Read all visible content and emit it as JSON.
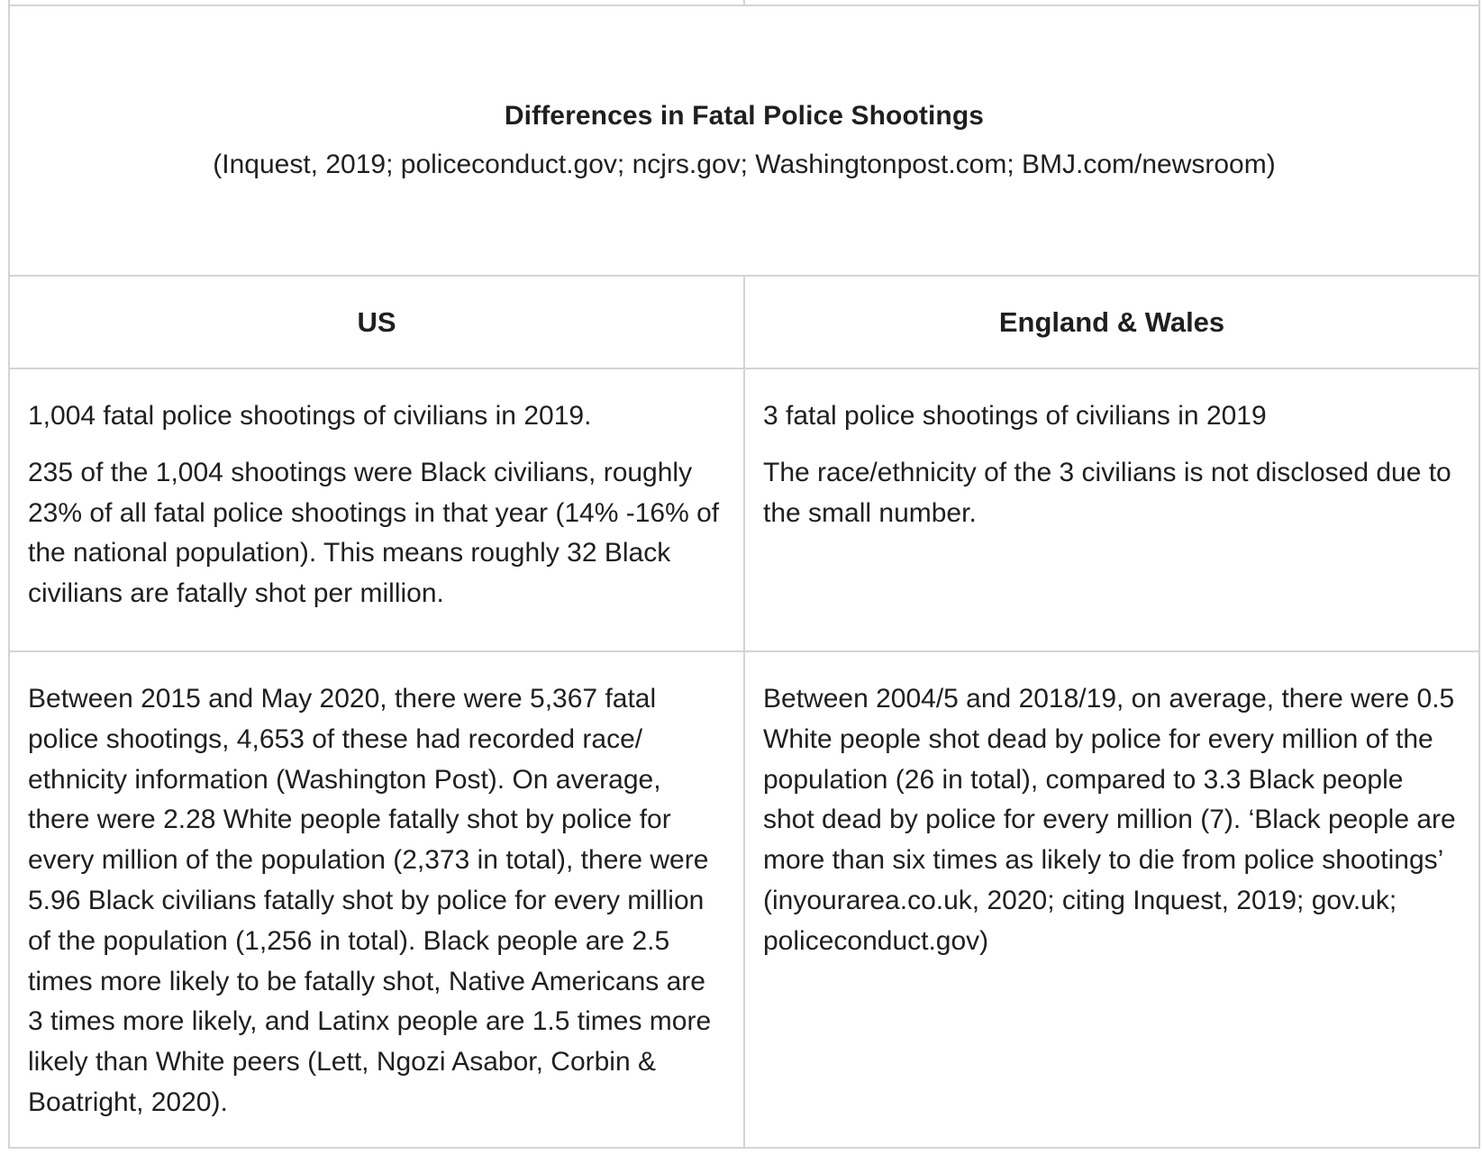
{
  "title": "Differences in Fatal Police Shootings",
  "subtitle": "(Inquest, 2019; policeconduct.gov; ncjrs.gov; Washingtonpost.com; BMJ.com/newsroom)",
  "columns": {
    "left": "US",
    "right": "England & Wales"
  },
  "rows": [
    {
      "left": [
        "1,004 fatal police shootings of civilians in 2019.",
        "235 of the 1,004 shootings were Black civilians, roughly 23% of all fatal police shootings in that year (14% -16% of the national population). This means roughly 32 Black civilians are fatally shot per million."
      ],
      "right": [
        "3 fatal police shootings of civilians in 2019",
        "The race/ethnicity of the 3 civilians is not disclosed due to the small number."
      ]
    },
    {
      "left": [
        "Between 2015 and May 2020, there were 5,367 fatal police shootings, 4,653 of these had recorded race/ ethnicity information (Washington Post). On average, there were 2.28 White people fatally shot by police for every million of the population (2,373 in total), there were 5.96 Black civilians fatally shot by police for every million of the population (1,256 in total). Black people are 2.5 times more likely to be fatally shot, Native Americans are 3 times more likely, and Latinx people are 1.5 times more likely than White peers (Lett, Ngozi Asabor, Corbin & Boatright, 2020)."
      ],
      "right": [
        "Between 2004/5 and 2018/19, on average, there were 0.5 White people shot dead by police for every million of the population (26 in total), compared to 3.3 Black people shot dead by police for every million (7). ‘Black people are more than six times as likely to die from police shootings’ (inyourarea.co.uk, 2020; citing Inquest, 2019; gov.uk; policeconduct.gov)"
      ]
    }
  ]
}
